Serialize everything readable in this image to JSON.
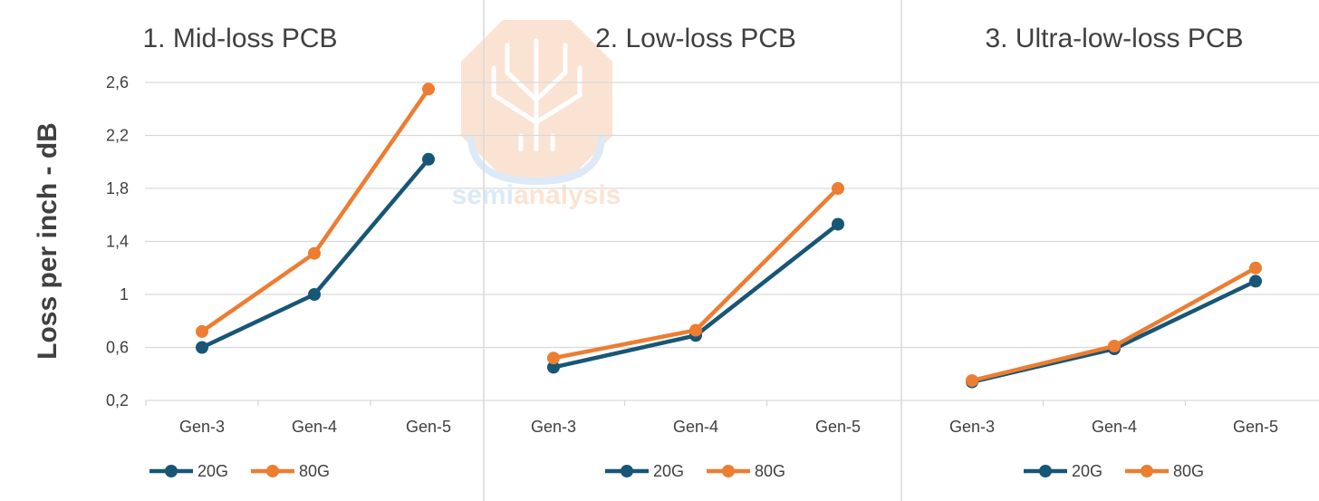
{
  "colors": {
    "series_20G": "#175676",
    "series_80G": "#ED7D31",
    "grid": "#D9D9D9",
    "text": "#404040",
    "watermark_orange": "#F4B183",
    "watermark_blue": "#9DC3E6"
  },
  "watermark": {
    "icon": "semianalysis-tree-logo",
    "brand_part1": "semi",
    "brand_part2": "analysis"
  },
  "ylabel": "Loss per inch - dB",
  "chart_data": [
    {
      "type": "line",
      "title": "1. Mid-loss PCB",
      "categories": [
        "Gen-3",
        "Gen-4",
        "Gen-5"
      ],
      "series": [
        {
          "name": "20G",
          "values": [
            0.6,
            1.0,
            2.02
          ]
        },
        {
          "name": "80G",
          "values": [
            0.72,
            1.31,
            2.55
          ]
        }
      ],
      "ylim": [
        0.2,
        2.6
      ],
      "yticks": [
        "2,6",
        "2,2",
        "1,8",
        "1,4",
        "1",
        "0,6",
        "0,2"
      ],
      "grid": true,
      "legend": "bottom"
    },
    {
      "type": "line",
      "title": "2. Low-loss PCB",
      "categories": [
        "Gen-3",
        "Gen-4",
        "Gen-5"
      ],
      "series": [
        {
          "name": "20G",
          "values": [
            0.45,
            0.69,
            1.53
          ]
        },
        {
          "name": "80G",
          "values": [
            0.52,
            0.73,
            1.8
          ]
        }
      ],
      "ylim": [
        0.2,
        2.6
      ],
      "grid": true,
      "legend": "bottom"
    },
    {
      "type": "line",
      "title": "3. Ultra-low-loss PCB",
      "categories": [
        "Gen-3",
        "Gen-4",
        "Gen-5"
      ],
      "series": [
        {
          "name": "20G",
          "values": [
            0.34,
            0.59,
            1.1
          ]
        },
        {
          "name": "80G",
          "values": [
            0.35,
            0.61,
            1.2
          ]
        }
      ],
      "ylim": [
        0.2,
        2.6
      ],
      "grid": true,
      "legend": "bottom"
    }
  ]
}
